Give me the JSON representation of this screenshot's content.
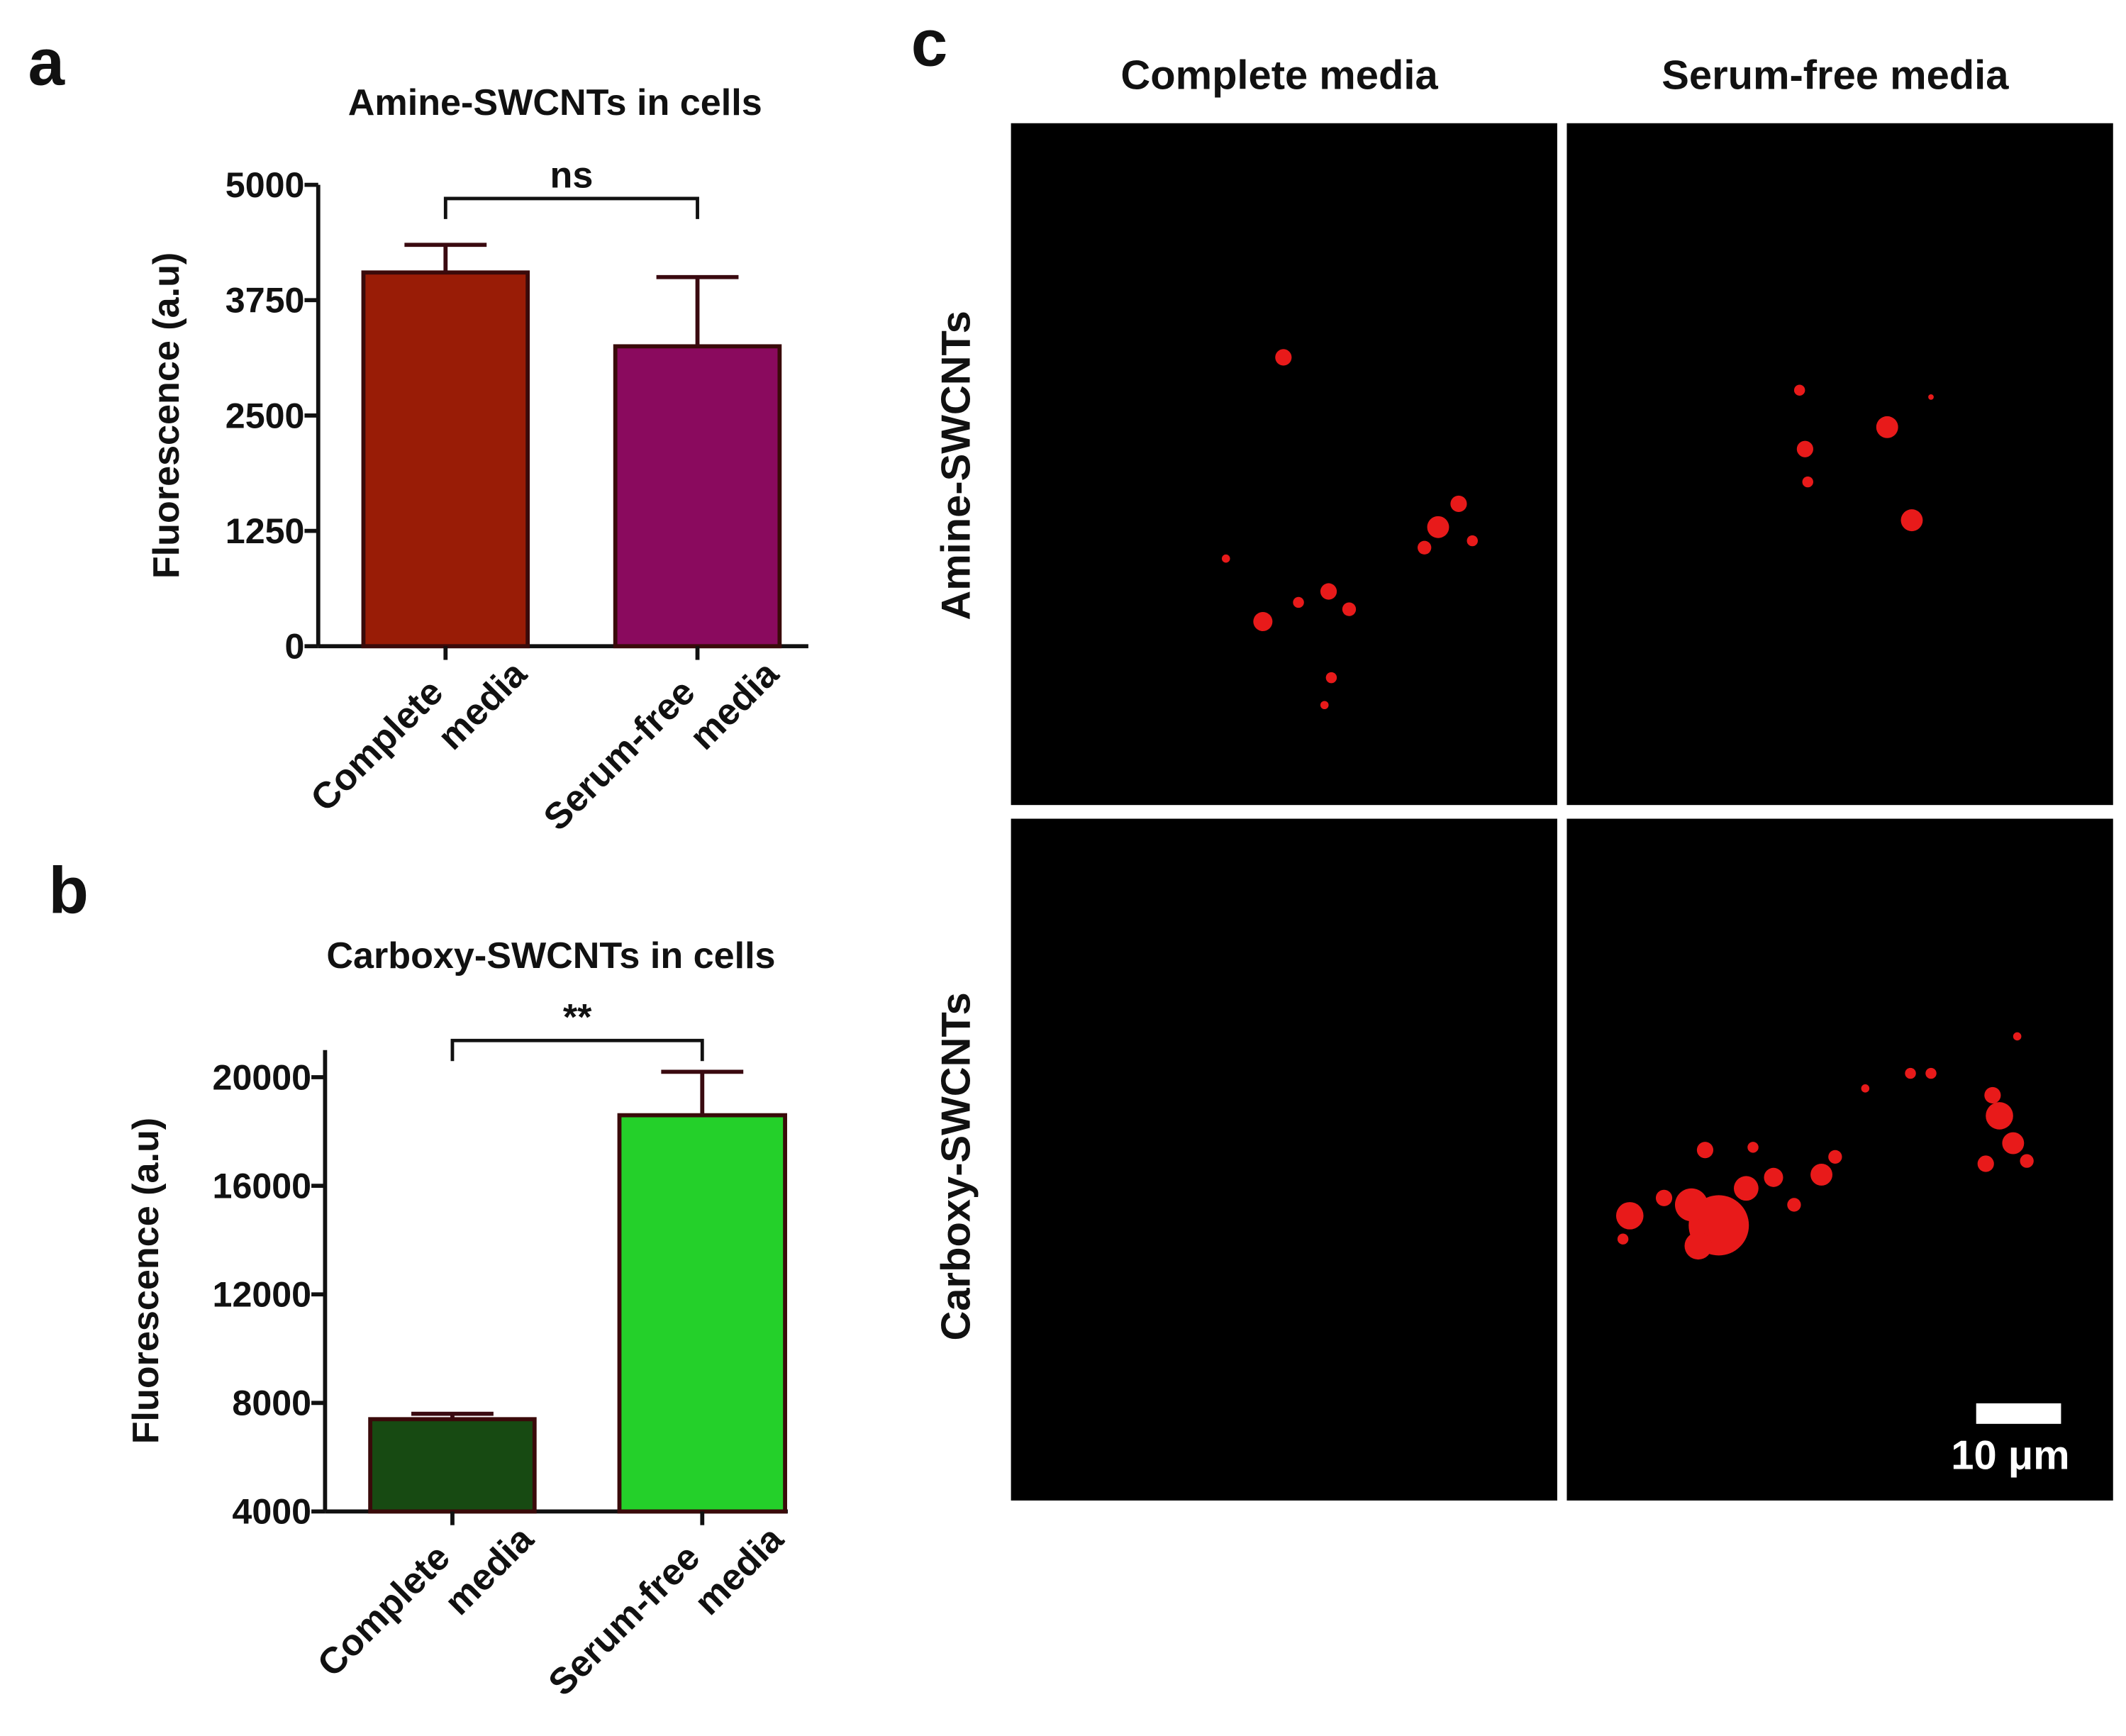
{
  "chart_data": [
    {
      "type": "bar",
      "panel_label": "a",
      "title": "Amine-SWCNTs in cells",
      "ylabel": "Fluorescence (a.u)",
      "categories": [
        "Complete media",
        "Serum-free media"
      ],
      "values": [
        4050,
        3250
      ],
      "errors": [
        300,
        750
      ],
      "colors": [
        "#991c06",
        "#8a0a5e"
      ],
      "ylim": [
        0,
        5000
      ],
      "yticks": [
        0,
        1250,
        2500,
        3750,
        5000
      ],
      "annotation": "ns"
    },
    {
      "type": "bar",
      "panel_label": "b",
      "title": "Carboxy-SWCNTs in cells",
      "ylabel": "Fluorescence (a.u)",
      "categories": [
        "Complete media",
        "Serum-free media"
      ],
      "values": [
        7400,
        18600
      ],
      "errors": [
        200,
        1600
      ],
      "colors": [
        "#174a12",
        "#24d02a"
      ],
      "ylim": [
        4000,
        21000
      ],
      "yticks": [
        4000,
        8000,
        12000,
        16000,
        20000
      ],
      "annotation": "**"
    }
  ],
  "image_panel": {
    "panel_label": "c",
    "columns": [
      "Complete media",
      "Serum-free media"
    ],
    "rows": [
      "Amine-SWCNTs",
      "Carboxy-SWCNTs"
    ],
    "scale_bar": "10 μm"
  }
}
